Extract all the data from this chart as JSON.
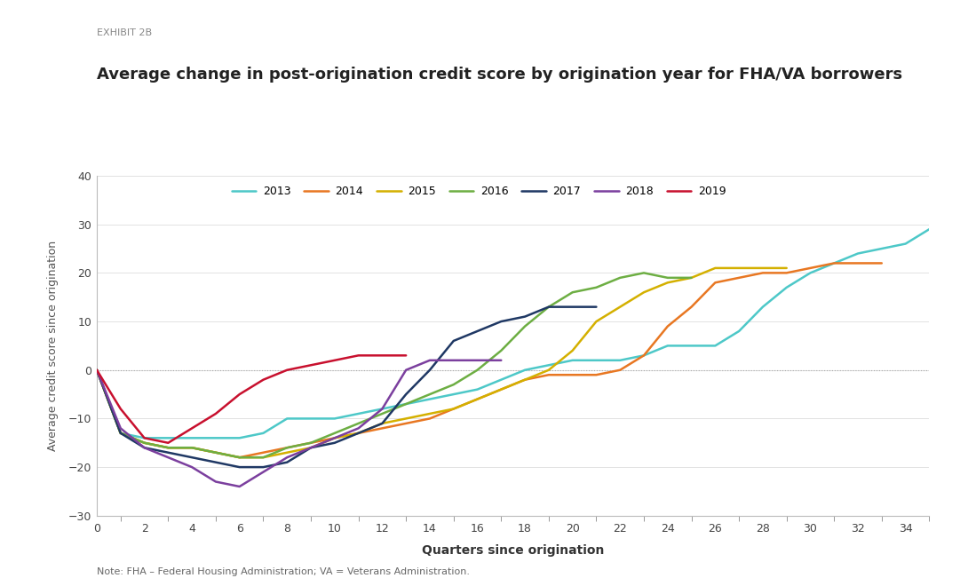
{
  "title": "Average change in post-origination credit score by origination year for FHA/VA borrowers",
  "exhibit_label": "EXHIBIT 2B",
  "xlabel": "Quarters since origination",
  "ylabel": "Average credit score since origination",
  "note": "Note: FHA – Federal Housing Administration; VA = Veterans Administration.",
  "ylim": [
    -30,
    40
  ],
  "xlim": [
    0,
    35
  ],
  "yticks": [
    -30,
    -20,
    -10,
    0,
    10,
    20,
    30,
    40
  ],
  "xticks": [
    0,
    2,
    4,
    6,
    8,
    10,
    12,
    14,
    16,
    18,
    20,
    22,
    24,
    26,
    28,
    30,
    32,
    34
  ],
  "background_color": "#ffffff",
  "series": {
    "2013": {
      "color": "#4DC8C8",
      "x": [
        0,
        1,
        2,
        3,
        4,
        5,
        6,
        7,
        8,
        9,
        10,
        11,
        12,
        13,
        14,
        15,
        16,
        17,
        18,
        19,
        20,
        21,
        22,
        23,
        24,
        25,
        26,
        27,
        28,
        29,
        30,
        31,
        32,
        33,
        34,
        35
      ],
      "y": [
        0,
        -13,
        -14,
        -14,
        -14,
        -14,
        -14,
        -13,
        -10,
        -10,
        -10,
        -9,
        -8,
        -7,
        -6,
        -5,
        -4,
        -2,
        0,
        1,
        2,
        2,
        2,
        3,
        5,
        5,
        5,
        8,
        13,
        17,
        20,
        22,
        24,
        25,
        26,
        29
      ]
    },
    "2014": {
      "color": "#E87722",
      "x": [
        0,
        1,
        2,
        3,
        4,
        5,
        6,
        7,
        8,
        9,
        10,
        11,
        12,
        13,
        14,
        15,
        16,
        17,
        18,
        19,
        20,
        21,
        22,
        23,
        24,
        25,
        26,
        27,
        28,
        29,
        30,
        31,
        32,
        33
      ],
      "y": [
        0,
        -13,
        -15,
        -16,
        -16,
        -17,
        -18,
        -17,
        -16,
        -15,
        -14,
        -13,
        -12,
        -11,
        -10,
        -8,
        -6,
        -4,
        -2,
        -1,
        -1,
        -1,
        0,
        3,
        9,
        13,
        18,
        19,
        20,
        20,
        21,
        22,
        22,
        22
      ]
    },
    "2015": {
      "color": "#D4B000",
      "x": [
        0,
        1,
        2,
        3,
        4,
        5,
        6,
        7,
        8,
        9,
        10,
        11,
        12,
        13,
        14,
        15,
        16,
        17,
        18,
        19,
        20,
        21,
        22,
        23,
        24,
        25,
        26,
        27,
        28,
        29
      ],
      "y": [
        0,
        -13,
        -15,
        -16,
        -16,
        -17,
        -18,
        -18,
        -17,
        -16,
        -14,
        -13,
        -11,
        -10,
        -9,
        -8,
        -6,
        -4,
        -2,
        0,
        4,
        10,
        13,
        16,
        18,
        19,
        21,
        21,
        21,
        21
      ]
    },
    "2016": {
      "color": "#6DAE43",
      "x": [
        0,
        1,
        2,
        3,
        4,
        5,
        6,
        7,
        8,
        9,
        10,
        11,
        12,
        13,
        14,
        15,
        16,
        17,
        18,
        19,
        20,
        21,
        22,
        23,
        24,
        25
      ],
      "y": [
        0,
        -13,
        -15,
        -16,
        -16,
        -17,
        -18,
        -18,
        -16,
        -15,
        -13,
        -11,
        -9,
        -7,
        -5,
        -3,
        0,
        4,
        9,
        13,
        16,
        17,
        19,
        20,
        19,
        19
      ]
    },
    "2017": {
      "color": "#1F3864",
      "x": [
        0,
        1,
        2,
        3,
        4,
        5,
        6,
        7,
        8,
        9,
        10,
        11,
        12,
        13,
        14,
        15,
        16,
        17,
        18,
        19,
        20,
        21
      ],
      "y": [
        0,
        -13,
        -16,
        -17,
        -18,
        -19,
        -20,
        -20,
        -19,
        -16,
        -15,
        -13,
        -11,
        -5,
        0,
        6,
        8,
        10,
        11,
        13,
        13,
        13
      ]
    },
    "2018": {
      "color": "#7B3F9E",
      "x": [
        0,
        1,
        2,
        3,
        4,
        5,
        6,
        7,
        8,
        9,
        10,
        11,
        12,
        13,
        14,
        15,
        16,
        17
      ],
      "y": [
        0,
        -12,
        -16,
        -18,
        -20,
        -23,
        -24,
        -21,
        -18,
        -16,
        -14,
        -12,
        -8,
        0,
        2,
        2,
        2,
        2
      ]
    },
    "2019": {
      "color": "#C8102E",
      "x": [
        0,
        1,
        2,
        3,
        4,
        5,
        6,
        7,
        8,
        9,
        10,
        11,
        12,
        13
      ],
      "y": [
        0,
        -8,
        -14,
        -15,
        -12,
        -9,
        -5,
        -2,
        0,
        1,
        2,
        3,
        3,
        3
      ]
    }
  }
}
